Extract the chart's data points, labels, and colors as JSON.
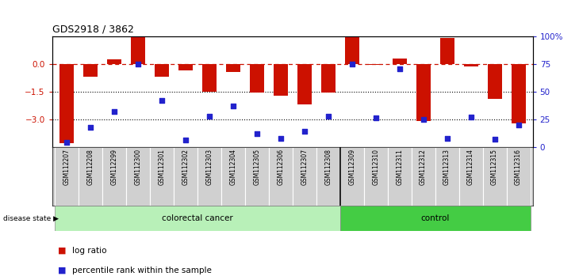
{
  "title": "GDS2918 / 3862",
  "samples": [
    "GSM112207",
    "GSM112208",
    "GSM112299",
    "GSM112300",
    "GSM112301",
    "GSM112302",
    "GSM112303",
    "GSM112304",
    "GSM112305",
    "GSM112306",
    "GSM112307",
    "GSM112308",
    "GSM112309",
    "GSM112310",
    "GSM112311",
    "GSM112312",
    "GSM112313",
    "GSM112314",
    "GSM112315",
    "GSM112316"
  ],
  "log_ratio": [
    -4.3,
    -0.7,
    0.25,
    1.5,
    -0.7,
    -0.35,
    -1.5,
    -0.45,
    -1.55,
    -1.7,
    -2.2,
    -1.55,
    1.45,
    -0.05,
    0.3,
    -3.1,
    1.4,
    -0.15,
    -1.9,
    -3.2
  ],
  "percentile": [
    4,
    18,
    32,
    75,
    42,
    6,
    28,
    37,
    12,
    8,
    14,
    28,
    75,
    26,
    71,
    25,
    8,
    27,
    7,
    20
  ],
  "colorectal_count": 12,
  "control_count": 8,
  "bar_color": "#cc1100",
  "dot_color": "#2222cc",
  "ylim_left": [
    -4.5,
    1.5
  ],
  "yticks_left": [
    0,
    -1.5,
    -3
  ],
  "ylim_right": [
    0,
    100
  ],
  "yticks_right": [
    0,
    25,
    50,
    75,
    100
  ],
  "dotted_lines": [
    -1.5,
    -3.0
  ],
  "colorectal_color": "#b8f0b8",
  "control_color": "#44cc44",
  "label_colorectal": "colorectal cancer",
  "label_control": "control",
  "disease_state_label": "disease state",
  "legend_bar_label": "log ratio",
  "legend_dot_label": "percentile rank within the sample",
  "background_color": "#ffffff"
}
